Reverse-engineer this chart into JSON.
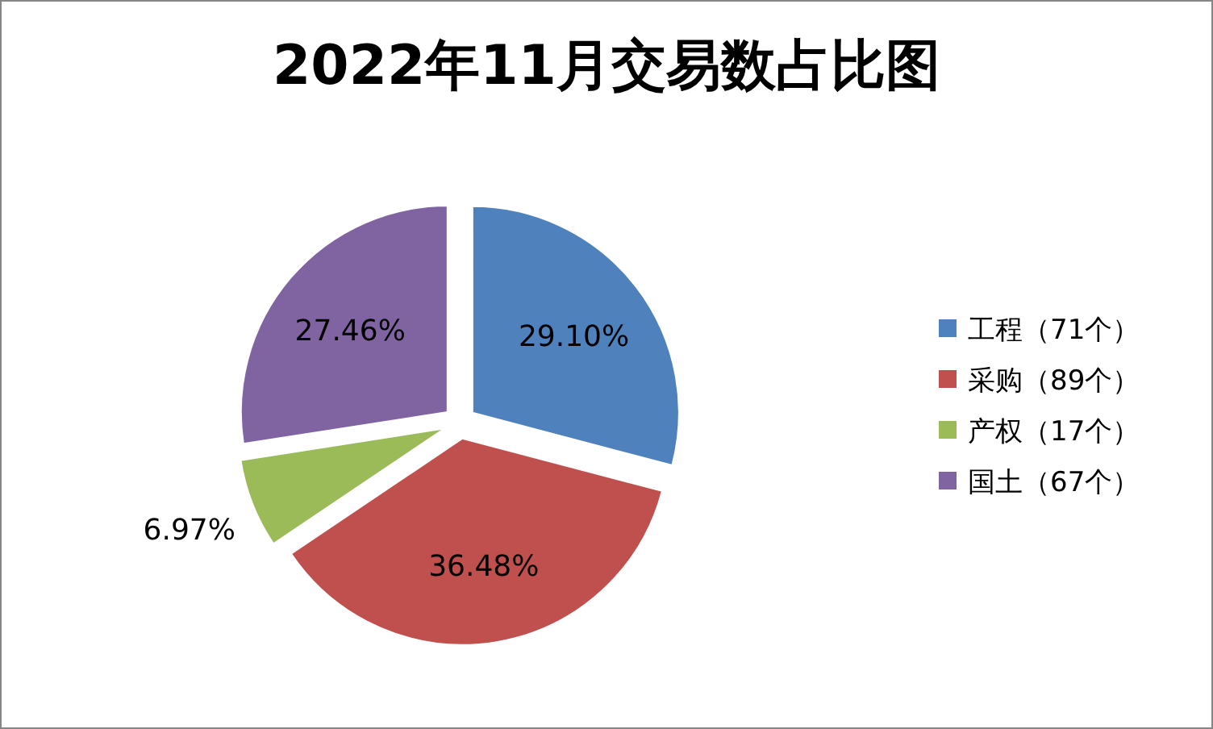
{
  "chart_data": {
    "type": "pie",
    "title": "2022年11月交易数占比图",
    "categories": [
      "工程（71个）",
      "采购（89个）",
      "产权（17个）",
      "国土（67个）"
    ],
    "values": [
      29.1,
      36.48,
      6.97,
      27.46
    ],
    "value_labels": [
      "29.10%",
      "36.48%",
      "6.97%",
      "27.46%"
    ],
    "colors": [
      "#4f81bd",
      "#c0504d",
      "#9bbb59",
      "#8064a2"
    ],
    "legend": "right"
  }
}
